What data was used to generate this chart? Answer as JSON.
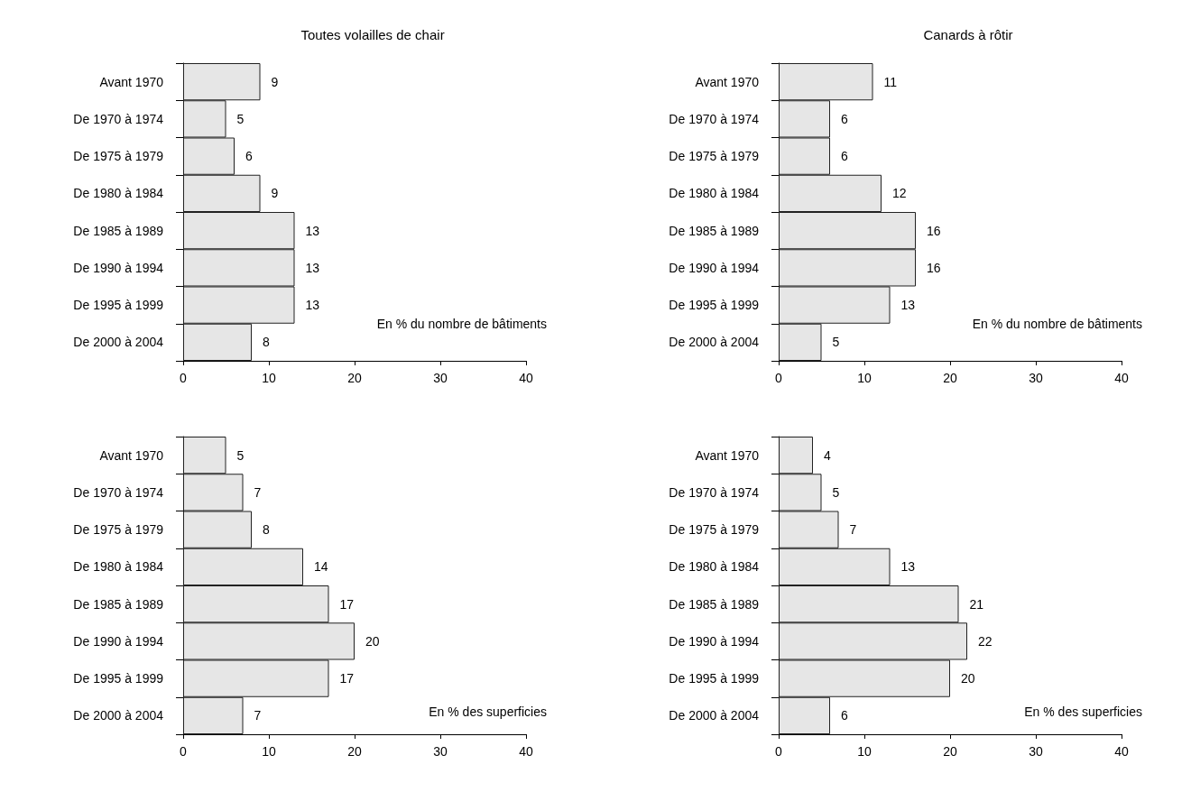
{
  "chart_data": [
    {
      "type": "bar",
      "orientation": "horizontal",
      "title": "Toutes volailles de chair",
      "categories": [
        "Avant 1970",
        "De 1970 à 1974",
        "De 1975 à 1979",
        "De 1980 à 1984",
        "De 1985 à 1989",
        "De 1990 à 1994",
        "De 1995 à 1999",
        "De 2000 à 2004"
      ],
      "values": [
        9,
        5,
        6,
        9,
        13,
        13,
        13,
        8
      ],
      "color": "#e6e6e6",
      "xlim": [
        0,
        40
      ],
      "xticks": [
        0,
        10,
        20,
        30,
        40
      ],
      "grid": false,
      "data_labels": true,
      "annotations": [
        "En % du nombre de bâtiments"
      ]
    },
    {
      "type": "bar",
      "orientation": "horizontal",
      "title": "Canards à rôtir",
      "categories": [
        "Avant 1970",
        "De 1970 à 1974",
        "De 1975 à 1979",
        "De 1980 à 1984",
        "De 1985 à 1989",
        "De 1990 à 1994",
        "De 1995 à 1999",
        "De 2000 à 2004"
      ],
      "values": [
        11,
        6,
        6,
        12,
        16,
        16,
        13,
        5
      ],
      "color": "#e6e6e6",
      "xlim": [
        0,
        40
      ],
      "xticks": [
        0,
        10,
        20,
        30,
        40
      ],
      "grid": false,
      "data_labels": true,
      "annotations": [
        "En % du nombre de bâtiments"
      ]
    },
    {
      "type": "bar",
      "orientation": "horizontal",
      "categories": [
        "Avant 1970",
        "De 1970 à 1974",
        "De 1975 à 1979",
        "De 1980 à 1984",
        "De 1985 à 1989",
        "De 1990 à 1994",
        "De 1995 à 1999",
        "De 2000 à 2004"
      ],
      "values": [
        5,
        7,
        8,
        14,
        17,
        20,
        17,
        7
      ],
      "color": "#e6e6e6",
      "xlim": [
        0,
        40
      ],
      "xticks": [
        0,
        10,
        20,
        30,
        40
      ],
      "grid": false,
      "data_labels": true,
      "annotations": [
        "En % des superficies"
      ]
    },
    {
      "type": "bar",
      "orientation": "horizontal",
      "categories": [
        "Avant 1970",
        "De 1970 à 1974",
        "De 1975 à 1979",
        "De 1980 à 1984",
        "De 1985 à 1989",
        "De 1990 à 1994",
        "De 1995 à 1999",
        "De 2000 à 2004"
      ],
      "values": [
        4,
        5,
        7,
        13,
        21,
        22,
        20,
        6
      ],
      "color": "#e6e6e6",
      "xlim": [
        0,
        40
      ],
      "xticks": [
        0,
        10,
        20,
        30,
        40
      ],
      "grid": false,
      "data_labels": true,
      "annotations": [
        "En % des superficies"
      ]
    }
  ]
}
